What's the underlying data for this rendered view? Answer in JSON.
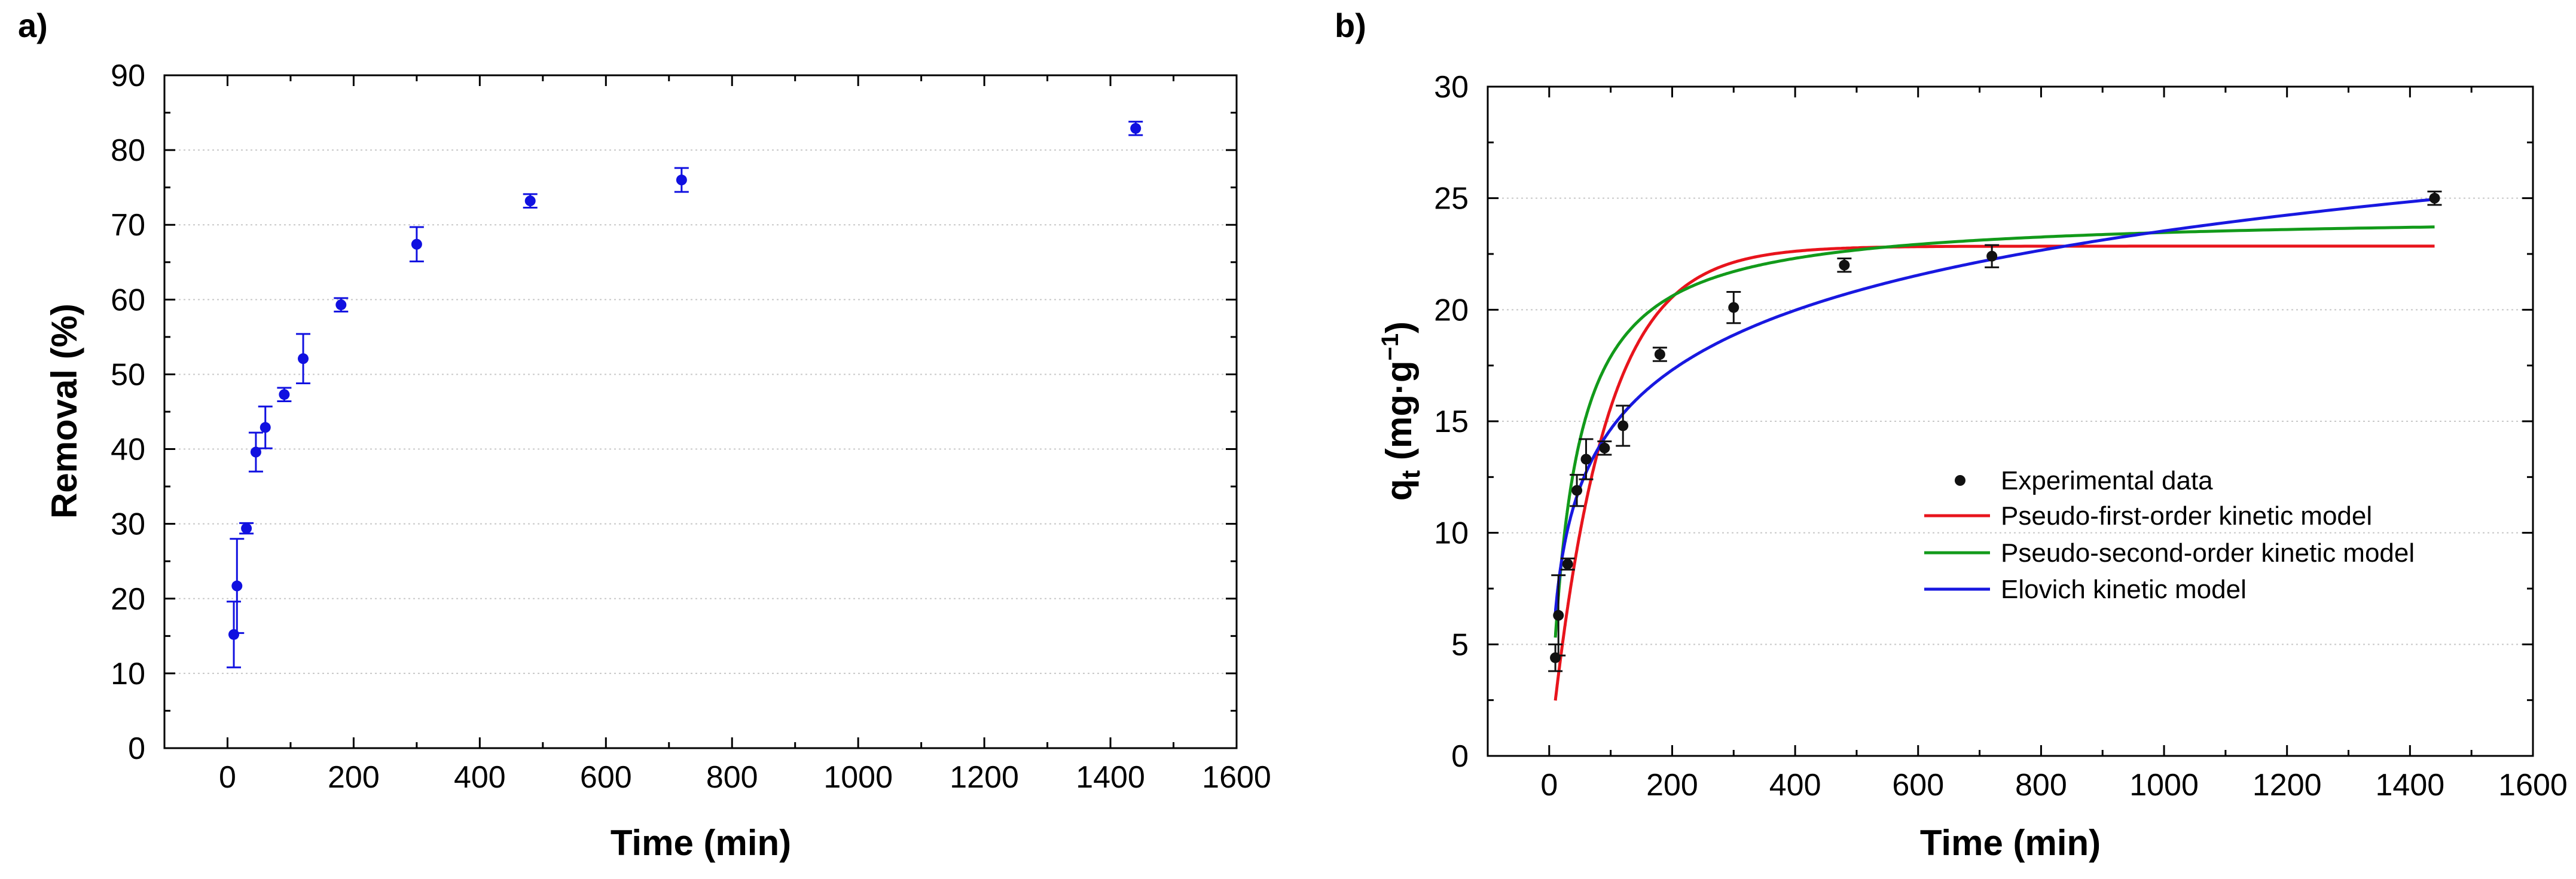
{
  "chart_data": [
    {
      "panel_label": "a)",
      "type": "scatter",
      "xlabel": "Time (min)",
      "ylabel": "Removal (%)",
      "xlim": [
        -100,
        1600
      ],
      "ylim": [
        0,
        90
      ],
      "xticks": [
        "0",
        "200",
        "400",
        "600",
        "800",
        "1000",
        "1200",
        "1400",
        "1600"
      ],
      "yticks": [
        "0",
        "10",
        "20",
        "30",
        "40",
        "50",
        "60",
        "70",
        "80",
        "90"
      ],
      "grid": "horizontal dotted",
      "marker_color": "#1010e0",
      "points": [
        {
          "x": 10,
          "y": 15.2,
          "err": 4.4
        },
        {
          "x": 15,
          "y": 21.7,
          "err": 6.3
        },
        {
          "x": 30,
          "y": 29.4,
          "err": 0.7
        },
        {
          "x": 45,
          "y": 39.6,
          "err": 2.6
        },
        {
          "x": 60,
          "y": 42.9,
          "err": 2.8
        },
        {
          "x": 90,
          "y": 47.3,
          "err": 0.9
        },
        {
          "x": 120,
          "y": 52.1,
          "err": 3.3
        },
        {
          "x": 180,
          "y": 59.3,
          "err": 0.9
        },
        {
          "x": 300,
          "y": 67.4,
          "err": 2.3
        },
        {
          "x": 480,
          "y": 73.2,
          "err": 0.9
        },
        {
          "x": 720,
          "y": 76.0,
          "err": 1.6
        },
        {
          "x": 1440,
          "y": 82.9,
          "err": 0.9
        }
      ]
    },
    {
      "panel_label": "b)",
      "type": "line",
      "xlabel": "Time (min)",
      "ylabel_main": "q",
      "ylabel_sub": "t",
      "ylabel_units": " (mg·g",
      "ylabel_sup": "−1",
      "ylabel_close": ")",
      "xlim": [
        -100,
        1600
      ],
      "ylim": [
        0,
        30
      ],
      "xticks": [
        "0",
        "200",
        "400",
        "600",
        "800",
        "1000",
        "1200",
        "1400",
        "1600"
      ],
      "yticks": [
        "0",
        "5",
        "10",
        "15",
        "20",
        "25",
        "30"
      ],
      "grid": "horizontal dotted",
      "experimental": {
        "name": "Experimental data",
        "color": "#111111",
        "points": [
          {
            "x": 10,
            "y": 4.4,
            "err": 0.6
          },
          {
            "x": 15,
            "y": 6.3,
            "err": 1.8
          },
          {
            "x": 30,
            "y": 8.6,
            "err": 0.25
          },
          {
            "x": 45,
            "y": 11.9,
            "err": 0.7
          },
          {
            "x": 60,
            "y": 13.3,
            "err": 0.9
          },
          {
            "x": 90,
            "y": 13.8,
            "err": 0.3
          },
          {
            "x": 120,
            "y": 14.8,
            "err": 0.9
          },
          {
            "x": 180,
            "y": 18.0,
            "err": 0.3
          },
          {
            "x": 300,
            "y": 20.1,
            "err": 0.7
          },
          {
            "x": 480,
            "y": 22.0,
            "err": 0.3
          },
          {
            "x": 720,
            "y": 22.4,
            "err": 0.5
          },
          {
            "x": 1440,
            "y": 25.0,
            "err": 0.3
          }
        ]
      },
      "models": [
        {
          "name": "Pseudo-first-order kinetic model",
          "kind": "pfo",
          "qe": 22.85,
          "k1": 0.0115,
          "color": "#e8141c"
        },
        {
          "name": "Pseudo-second-order kinetic model",
          "kind": "pso",
          "qe": 24.3,
          "k2": 0.00115,
          "color": "#129a1a"
        },
        {
          "name": "Elovich kinetic model",
          "kind": "elovich",
          "alpha": 1.63,
          "beta": 0.2566,
          "color": "#1818e0"
        }
      ],
      "curve_range": [
        10,
        1440
      ]
    }
  ]
}
